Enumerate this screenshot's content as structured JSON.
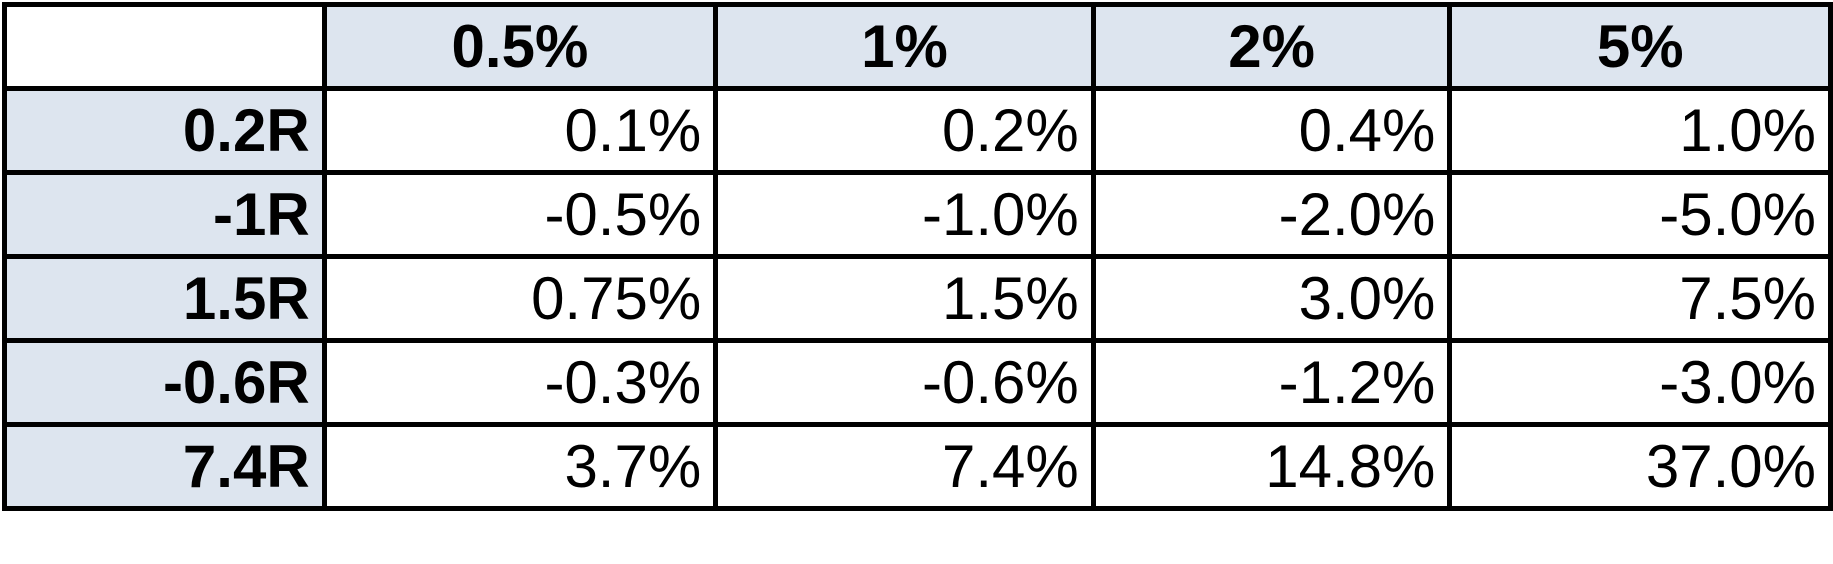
{
  "table": {
    "corner": "",
    "columns": [
      "0.5%",
      "1%",
      "2%",
      "5%"
    ],
    "rows": [
      {
        "label": "0.2R",
        "values": [
          "0.1%",
          "0.2%",
          "0.4%",
          "1.0%"
        ]
      },
      {
        "label": "-1R",
        "values": [
          "-0.5%",
          "-1.0%",
          "-2.0%",
          "-5.0%"
        ]
      },
      {
        "label": "1.5R",
        "values": [
          "0.75%",
          "1.5%",
          "3.0%",
          "7.5%"
        ]
      },
      {
        "label": "-0.6R",
        "values": [
          "-0.3%",
          "-0.6%",
          "-1.2%",
          "-3.0%"
        ]
      },
      {
        "label": "7.4R",
        "values": [
          "3.7%",
          "7.4%",
          "14.8%",
          "37.0%"
        ]
      }
    ],
    "colors": {
      "header_fill": "#dde5ef",
      "cell_fill": "#ffffff",
      "border": "#000000"
    }
  }
}
